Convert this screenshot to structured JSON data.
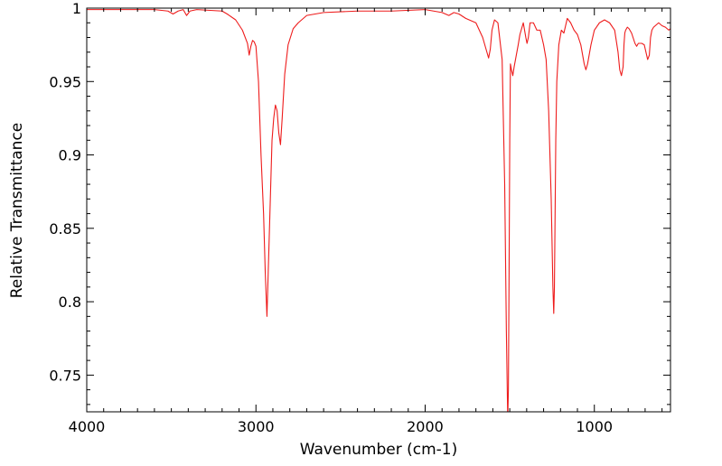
{
  "chart_data": {
    "type": "line",
    "xlabel": "Wavenumber (cm-1)",
    "ylabel": "Relative Transmittance",
    "xlim": [
      4000,
      550
    ],
    "ylim": [
      0.725,
      1.0
    ],
    "x_reversed": true,
    "grid": false,
    "line_color": "#ee1c1c",
    "x_ticks": [
      4000,
      3000,
      2000,
      1000
    ],
    "x_tick_labels": [
      "4000",
      "3000",
      "2000",
      "1000"
    ],
    "y_ticks": [
      0.75,
      0.8,
      0.85,
      0.9,
      0.95,
      1.0
    ],
    "y_tick_labels": [
      "0.75",
      "0.8",
      "0.85",
      "0.9",
      "0.95",
      "1"
    ],
    "series": [
      {
        "x": [
          4000,
          3800,
          3600,
          3520,
          3490,
          3460,
          3430,
          3410,
          3390,
          3350,
          3200,
          3170,
          3120,
          3080,
          3050,
          3040,
          3030,
          3020,
          3010,
          3000,
          2985,
          2970,
          2955,
          2945,
          2935,
          2925,
          2915,
          2905,
          2895,
          2885,
          2875,
          2865,
          2855,
          2845,
          2830,
          2810,
          2780,
          2750,
          2700,
          2600,
          2400,
          2200,
          2000,
          1900,
          1860,
          1830,
          1800,
          1760,
          1700,
          1660,
          1640,
          1625,
          1615,
          1605,
          1590,
          1570,
          1545,
          1530,
          1520,
          1512,
          1508,
          1504,
          1500,
          1496,
          1490,
          1482,
          1474,
          1466,
          1458,
          1450,
          1440,
          1420,
          1405,
          1398,
          1390,
          1380,
          1360,
          1340,
          1320,
          1300,
          1285,
          1270,
          1255,
          1245,
          1240,
          1236,
          1232,
          1228,
          1222,
          1210,
          1195,
          1180,
          1160,
          1140,
          1120,
          1100,
          1080,
          1060,
          1050,
          1040,
          1020,
          1000,
          970,
          940,
          910,
          880,
          860,
          850,
          840,
          830,
          825,
          820,
          815,
          805,
          795,
          780,
          760,
          750,
          740,
          720,
          705,
          695,
          685,
          675,
          668,
          660,
          650,
          640,
          620,
          600,
          580,
          560,
          550
        ],
        "values": [
          0.999,
          0.999,
          0.999,
          0.998,
          0.996,
          0.998,
          0.999,
          0.995,
          0.998,
          0.999,
          0.998,
          0.996,
          0.992,
          0.985,
          0.976,
          0.968,
          0.974,
          0.978,
          0.977,
          0.974,
          0.95,
          0.9,
          0.86,
          0.82,
          0.79,
          0.83,
          0.87,
          0.91,
          0.925,
          0.934,
          0.93,
          0.915,
          0.907,
          0.925,
          0.955,
          0.975,
          0.986,
          0.99,
          0.995,
          0.997,
          0.998,
          0.998,
          0.999,
          0.997,
          0.995,
          0.997,
          0.996,
          0.993,
          0.99,
          0.98,
          0.972,
          0.966,
          0.972,
          0.985,
          0.992,
          0.99,
          0.965,
          0.88,
          0.78,
          0.72,
          0.74,
          0.82,
          0.91,
          0.962,
          0.958,
          0.954,
          0.96,
          0.965,
          0.97,
          0.975,
          0.982,
          0.99,
          0.98,
          0.976,
          0.98,
          0.99,
          0.99,
          0.985,
          0.985,
          0.975,
          0.965,
          0.93,
          0.87,
          0.81,
          0.792,
          0.81,
          0.86,
          0.91,
          0.95,
          0.975,
          0.985,
          0.983,
          0.993,
          0.99,
          0.985,
          0.982,
          0.975,
          0.962,
          0.958,
          0.962,
          0.975,
          0.985,
          0.99,
          0.992,
          0.99,
          0.985,
          0.97,
          0.958,
          0.954,
          0.96,
          0.975,
          0.983,
          0.985,
          0.987,
          0.986,
          0.983,
          0.976,
          0.974,
          0.976,
          0.976,
          0.975,
          0.97,
          0.965,
          0.968,
          0.98,
          0.985,
          0.987,
          0.988,
          0.99,
          0.988,
          0.987,
          0.985,
          0.986
        ]
      }
    ]
  }
}
